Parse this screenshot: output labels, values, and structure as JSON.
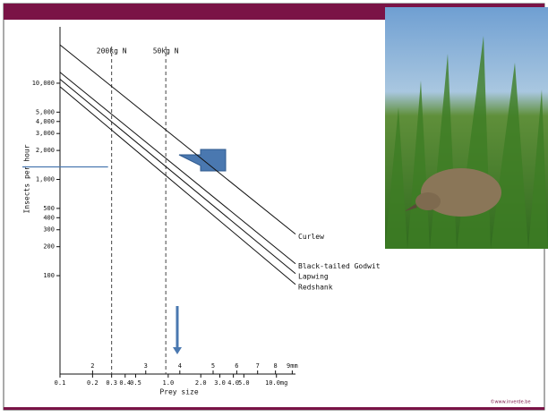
{
  "chart_data": {
    "type": "line",
    "y_axis_label": "Insects per hour",
    "x_axis_label": "Prey size",
    "log_x": true,
    "log_y": true,
    "x": [
      0.1,
      15
    ],
    "series": [
      {
        "name": "Curlew",
        "color": "#111111",
        "values": [
          25000,
          270
        ]
      },
      {
        "name": "Black-tailed Godwit",
        "color": "#111111",
        "values": [
          13000,
          133
        ]
      },
      {
        "name": "Lapwing",
        "color": "#111111",
        "values": [
          11000,
          105
        ]
      },
      {
        "name": "Redshank",
        "color": "#111111",
        "values": [
          9200,
          81
        ]
      }
    ],
    "xlim": [
      0.1,
      15
    ],
    "ylim": [
      9.5,
      38500
    ],
    "xticks": [
      0.1,
      0.2,
      0.3,
      0.4,
      0.5,
      {
        "value": 1,
        "label": "1.0"
      },
      {
        "value": 2,
        "label": "2.0"
      },
      {
        "value": 3,
        "label": "3.0"
      },
      {
        "value": 4,
        "label": "4.0"
      },
      {
        "value": 5,
        "label": "5.0"
      },
      {
        "value": 10,
        "label": "10.0mg"
      }
    ],
    "xticks_secondary": [
      {
        "value": 0.2,
        "label": "2"
      },
      {
        "value": 0.62,
        "label": "3"
      },
      {
        "value": 1.28,
        "label": "4"
      },
      {
        "value": 2.6,
        "label": "5"
      },
      {
        "value": 4.3,
        "label": "6"
      },
      {
        "value": 6.7,
        "label": "7"
      },
      {
        "value": 9.8,
        "label": "8"
      },
      {
        "value": 14,
        "label": "9mm"
      }
    ],
    "yticks": [
      {
        "value": 10000,
        "label": "10,000"
      },
      {
        "value": 5000,
        "label": "5,000"
      },
      {
        "value": 4000,
        "label": "4,000"
      },
      {
        "value": 3000,
        "label": "3,000"
      },
      {
        "value": 2000,
        "label": "2,000"
      },
      {
        "value": 1000,
        "label": "1,000"
      },
      500,
      400,
      300,
      200,
      100
    ],
    "vlines": [
      {
        "label": "200kg N",
        "x": 0.3
      },
      {
        "label": "50kg N",
        "x": 0.95
      }
    ],
    "hline": {
      "y": 1350,
      "color": "#4a78b0"
    }
  },
  "footer": "©www.inverde.be"
}
